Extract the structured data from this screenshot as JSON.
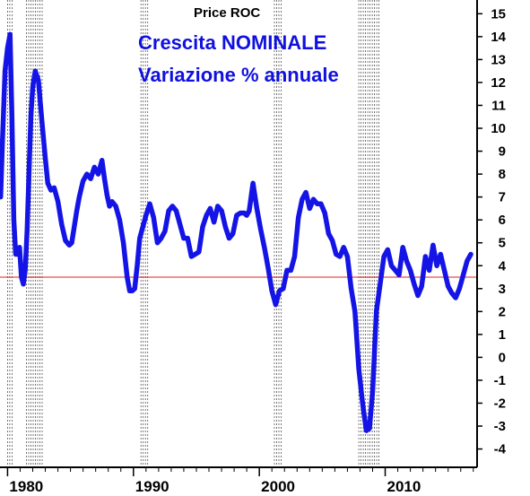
{
  "chart_data": {
    "type": "line",
    "title": "Price ROC",
    "subtitle_lines": [
      "Crescita NOMINALE",
      "Variazione % annuale"
    ],
    "xlabel": "",
    "ylabel": "",
    "xlim": [
      1979.4,
      2017.3
    ],
    "ylim": [
      -4.8,
      15.6
    ],
    "y_ticks": [
      15,
      14,
      13,
      12,
      11,
      10,
      9,
      8,
      7,
      6,
      5,
      4,
      3,
      2,
      1,
      0,
      -1,
      -2,
      -3,
      -4
    ],
    "x_tick_labels": [
      {
        "value": 1980,
        "label": "1980"
      },
      {
        "value": 1990,
        "label": "1990"
      },
      {
        "value": 2000,
        "label": "2000"
      },
      {
        "value": 2010,
        "label": "2010"
      }
    ],
    "reference_line": {
      "y": 3.5,
      "color": "#e02020"
    },
    "recession_bands": [
      [
        1980.0,
        1980.5
      ],
      [
        1981.5,
        1982.9
      ],
      [
        1990.6,
        1991.2
      ],
      [
        2001.2,
        2001.9
      ],
      [
        2007.9,
        2009.5
      ]
    ],
    "grid": false,
    "line_color": "#1414e6",
    "series": [
      {
        "x": [
          1979.45,
          1979.6,
          1979.8,
          1980.0,
          1980.2,
          1980.35,
          1980.5,
          1980.65,
          1980.8,
          1980.95,
          1981.1,
          1981.25,
          1981.4,
          1981.55,
          1981.7,
          1981.85,
          1982.0,
          1982.2,
          1982.45,
          1982.7,
          1983.0,
          1983.2,
          1983.45,
          1983.7,
          1984.0,
          1984.3,
          1984.6,
          1984.9,
          1985.1,
          1985.3,
          1985.5,
          1985.7,
          1986.0,
          1986.3,
          1986.6,
          1986.9,
          1987.2,
          1987.5,
          1987.7,
          1987.9,
          1988.1,
          1988.3,
          1988.6,
          1988.9,
          1989.2,
          1989.5,
          1989.7,
          1989.9,
          1990.1,
          1990.3,
          1990.5,
          1990.8,
          1991.0,
          1991.3,
          1991.6,
          1991.9,
          1992.2,
          1992.5,
          1992.8,
          1993.1,
          1993.4,
          1993.7,
          1994.0,
          1994.3,
          1994.6,
          1994.9,
          1995.2,
          1995.5,
          1995.8,
          1996.1,
          1996.4,
          1996.7,
          1997.0,
          1997.3,
          1997.6,
          1997.9,
          1998.2,
          1998.5,
          1998.8,
          1999.0,
          1999.2,
          1999.5,
          1999.8,
          2000.1,
          2000.4,
          2000.7,
          2001.0,
          2001.3,
          2001.6,
          2001.9,
          2002.2,
          2002.5,
          2002.8,
          2003.1,
          2003.4,
          2003.7,
          2004.0,
          2004.3,
          2004.6,
          2004.9,
          2005.2,
          2005.5,
          2005.8,
          2006.1,
          2006.4,
          2006.7,
          2007.0,
          2007.3,
          2007.6,
          2007.9,
          2008.2,
          2008.5,
          2008.75,
          2009.0,
          2009.3,
          2009.6,
          2009.9,
          2010.2,
          2010.5,
          2010.8,
          2011.1,
          2011.4,
          2011.7,
          2012.0,
          2012.3,
          2012.6,
          2012.9,
          2013.2,
          2013.5,
          2013.8,
          2014.1,
          2014.4,
          2014.7,
          2015.0,
          2015.3,
          2015.6,
          2015.9,
          2016.2,
          2016.5,
          2016.8
        ],
        "y": [
          7.0,
          9.5,
          12.5,
          13.5,
          14.1,
          10.5,
          6.0,
          4.5,
          4.5,
          4.8,
          3.5,
          3.2,
          3.8,
          5.5,
          8.0,
          10.5,
          11.8,
          12.5,
          12.1,
          10.5,
          8.7,
          7.6,
          7.3,
          7.4,
          6.8,
          5.8,
          5.1,
          4.9,
          5.0,
          5.7,
          6.4,
          7.0,
          7.7,
          8.0,
          7.8,
          8.3,
          8.0,
          8.6,
          7.8,
          7.1,
          6.6,
          6.8,
          6.6,
          6.0,
          5.0,
          3.5,
          2.9,
          2.9,
          3.0,
          4.0,
          5.2,
          5.8,
          6.2,
          6.7,
          6.1,
          5.0,
          5.2,
          5.5,
          6.4,
          6.6,
          6.4,
          5.8,
          5.2,
          5.2,
          4.4,
          4.5,
          4.6,
          5.7,
          6.2,
          6.5,
          5.9,
          6.6,
          6.4,
          5.7,
          5.2,
          5.4,
          6.2,
          6.3,
          6.3,
          6.2,
          6.4,
          7.6,
          6.5,
          5.6,
          4.8,
          3.9,
          2.9,
          2.3,
          2.9,
          3.0,
          3.8,
          3.8,
          4.4,
          6.1,
          6.9,
          7.2,
          6.5,
          6.9,
          6.7,
          6.7,
          6.3,
          5.4,
          5.1,
          4.5,
          4.4,
          4.8,
          4.4,
          3.0,
          2.0,
          -0.5,
          -2.0,
          -3.2,
          -3.1,
          -1.5,
          2.0,
          3.2,
          4.4,
          4.7,
          4.0,
          3.8,
          3.6,
          4.8,
          4.2,
          3.8,
          3.2,
          2.7,
          3.1,
          4.4,
          3.8,
          4.9,
          4.0,
          4.5,
          3.8,
          3.1,
          2.8,
          2.6,
          3.0,
          3.6,
          4.2,
          4.5
        ]
      }
    ]
  }
}
